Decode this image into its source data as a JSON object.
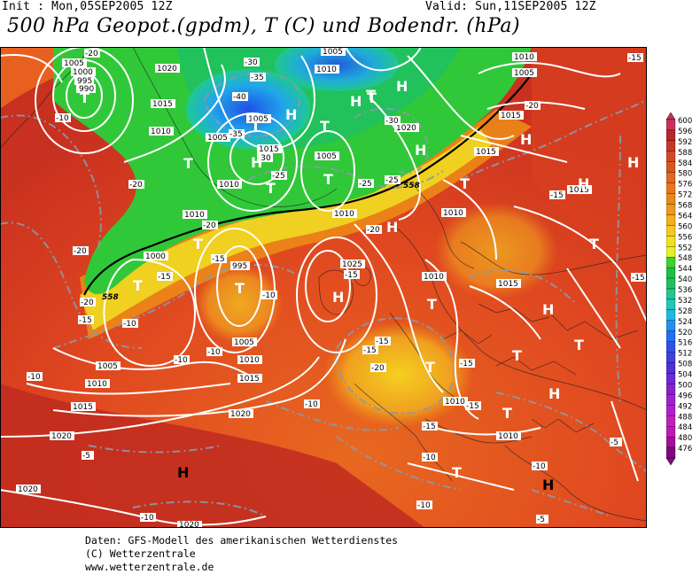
{
  "header": {
    "init": "Init : Mon,05SEP2005 12Z",
    "valid": "Valid: Sun,11SEP2005 12Z",
    "title": "500 hPa Geopot.(gpdm), T (C) und Bodendr. (hPa)"
  },
  "legend": {
    "values": [
      "600",
      "596",
      "592",
      "588",
      "584",
      "580",
      "576",
      "572",
      "568",
      "564",
      "560",
      "556",
      "552",
      "548",
      "544",
      "540",
      "536",
      "532",
      "528",
      "524",
      "520",
      "516",
      "512",
      "508",
      "504",
      "500",
      "496",
      "492",
      "488",
      "484",
      "480",
      "476"
    ],
    "colors": [
      "#c8305a",
      "#b82828",
      "#c83828",
      "#d04828",
      "#d85820",
      "#e06820",
      "#e87820",
      "#ec8818",
      "#f09818",
      "#f4b018",
      "#f4c820",
      "#f0e020",
      "#e8f020",
      "#40d030",
      "#20c040",
      "#20c060",
      "#20c890",
      "#20c8b8",
      "#20b8e0",
      "#2090f0",
      "#2070f0",
      "#3050e8",
      "#4040e0",
      "#5030d8",
      "#7028d0",
      "#8820d0",
      "#a020d0",
      "#b020c8",
      "#c020c0",
      "#c018b8",
      "#a01098",
      "#800880"
    ]
  },
  "map": {
    "pressure_labels": [
      "1005",
      "1000",
      "995",
      "990",
      "1020",
      "1015",
      "1010",
      "1005",
      "1010",
      "1005",
      "1005",
      "1015",
      "1010",
      "1005",
      "1010",
      "1010",
      "1020",
      "1015",
      "1015",
      "1010",
      "1005",
      "1010",
      "1000",
      "995",
      "1025",
      "1010",
      "1005",
      "1010",
      "1015",
      "1015",
      "1005",
      "1010",
      "1015",
      "1020",
      "1010",
      "1020",
      "1020",
      "1010",
      "1000",
      "1000",
      "1005",
      "1010",
      "1005"
    ],
    "temperature_labels": [
      "-20",
      "-10",
      "-20",
      "-30",
      "-35",
      "-40",
      "-35",
      "-30",
      "-25",
      "-30",
      "-25",
      "-20",
      "-15",
      "-25",
      "-20",
      "-15",
      "-20",
      "-15",
      "-20",
      "-15",
      "-15",
      "-10",
      "-15",
      "-10",
      "-10",
      "-10",
      "-15",
      "-15",
      "-15",
      "-20",
      "-15",
      "-10",
      "-15",
      "-10",
      "-5",
      "-10",
      "-5",
      "-10",
      "-10",
      "-5",
      "-20",
      "-15",
      "-10"
    ],
    "pressure_centers": [
      "T",
      "T",
      "T",
      "T",
      "T",
      "T",
      "T",
      "T",
      "T",
      "T",
      "T",
      "T",
      "T",
      "T",
      "T",
      "T",
      "T",
      "T",
      "T",
      "H",
      "H",
      "H",
      "H",
      "H",
      "H",
      "H",
      "H",
      "H",
      "H",
      "H",
      "H"
    ],
    "geopotential_labels": [
      "558",
      "558"
    ]
  },
  "footer": {
    "line1": "Daten: GFS-Modell des amerikanischen Wetterdienstes",
    "line2": "(C) Wetterzentrale",
    "line3": "www.wetterzentrale.de"
  }
}
